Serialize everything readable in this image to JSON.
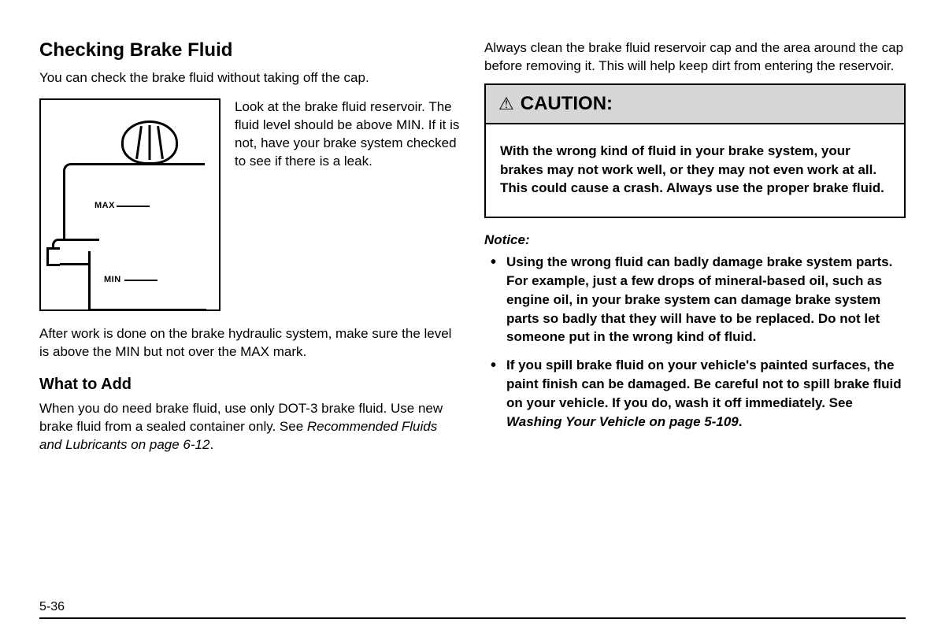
{
  "left": {
    "heading": "Checking Brake Fluid",
    "intro": "You can check the brake fluid without taking off the cap.",
    "figure": {
      "max_label": "MAX",
      "min_label": "MIN",
      "caption": "Look at the brake fluid reservoir. The fluid level should be above MIN. If it is not, have your brake system checked to see if there is a leak."
    },
    "after_figure": "After work is done on the brake hydraulic system, make sure the level is above the MIN but not over the MAX mark.",
    "sub_heading": "What to Add",
    "what_to_add_text": "When you do need brake fluid, use only DOT-3 brake fluid. Use new brake fluid from a sealed container only. See ",
    "what_to_add_ref": "Recommended Fluids and Lubricants on page 6-12",
    "what_to_add_tail": "."
  },
  "right": {
    "top_para": "Always clean the brake fluid reservoir cap and the area around the cap before removing it. This will help keep dirt from entering the reservoir.",
    "caution": {
      "symbol": "⚠",
      "label": "CAUTION:",
      "body": "With the wrong kind of fluid in your brake system, your brakes may not work well, or they may not even work at all. This could cause a crash. Always use the proper brake fluid."
    },
    "notice_label": "Notice:",
    "notice_items": [
      {
        "text": "Using the wrong fluid can badly damage brake system parts. For example, just a few drops of mineral-based oil, such as engine oil, in your brake system can damage brake system parts so badly that they will have to be replaced. Do not let someone put in the wrong kind of fluid."
      },
      {
        "text_pre": "If you spill brake fluid on your vehicle's painted surfaces, the paint finish can be damaged. Be careful not to spill brake fluid on your vehicle. If you do, wash it off immediately. See ",
        "ref": "Washing Your Vehicle on page 5-109",
        "tail": "."
      }
    ]
  },
  "page_number": "5-36",
  "colors": {
    "background": "#ffffff",
    "text": "#000000",
    "caution_header_bg": "#d6d6d6",
    "border": "#000000"
  },
  "typography": {
    "body_fontsize_pt": 13,
    "h1_fontsize_pt": 18,
    "h2_fontsize_pt": 15,
    "font_family": "Arial"
  }
}
